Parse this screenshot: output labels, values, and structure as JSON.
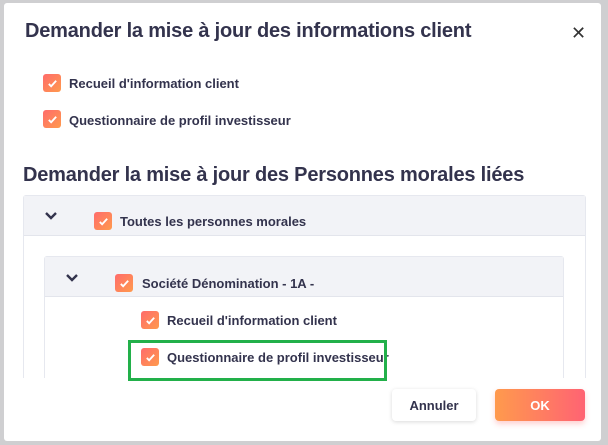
{
  "dialog": {
    "title": "Demander la mise à jour des informations client",
    "close_icon": "close-icon",
    "client_items": [
      {
        "label": "Recueil d'information client",
        "checked": true
      },
      {
        "label": "Questionnaire de profil investisseur",
        "checked": true
      }
    ],
    "section_title": "Demander la mise à jour des Personnes morales liées",
    "all_group": {
      "label": "Toutes les personnes morales",
      "checked": true,
      "expanded": true
    },
    "entity_group": {
      "label": "Société Dénomination - 1A -",
      "checked": true,
      "expanded": true,
      "items": [
        {
          "label": "Recueil d'information client",
          "checked": true
        },
        {
          "label": "Questionnaire de profil investisseur",
          "checked": true
        }
      ]
    },
    "buttons": {
      "cancel": "Annuler",
      "ok": "OK"
    },
    "colors": {
      "accent_start": "#ff6b6b",
      "accent_end": "#ff9a4d",
      "highlight": "#22b04a"
    }
  }
}
